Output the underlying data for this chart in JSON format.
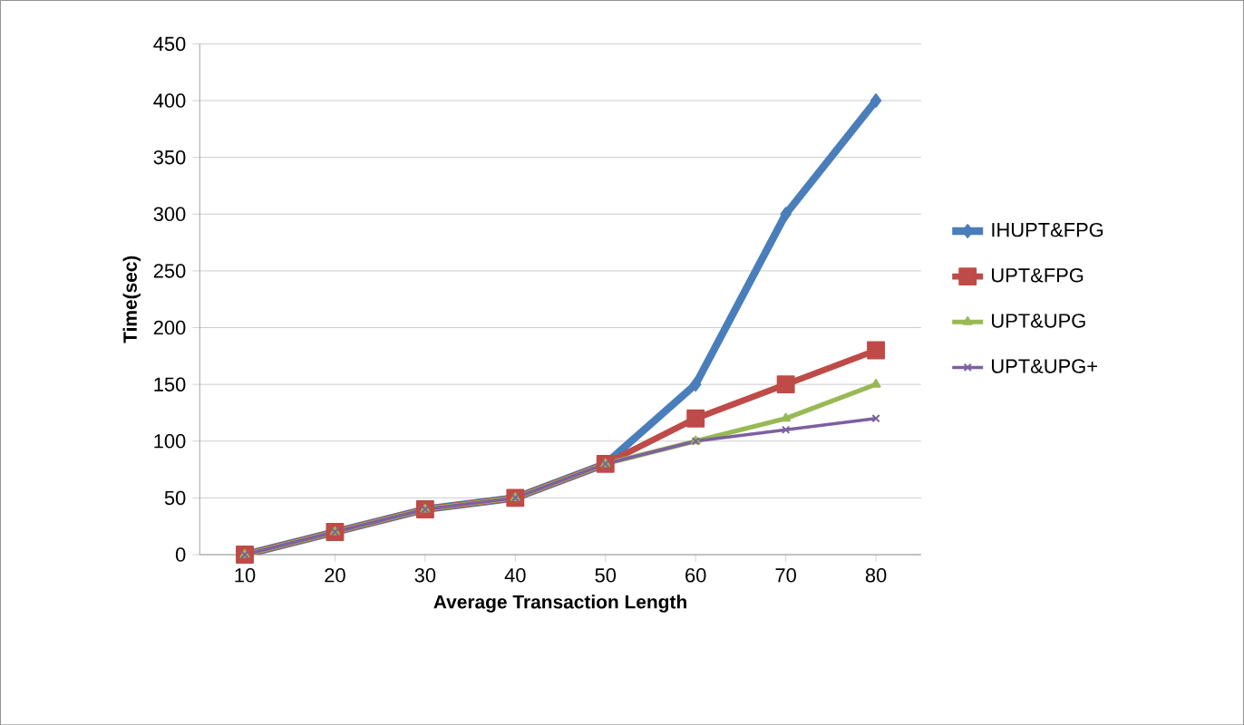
{
  "chart_data": {
    "type": "line",
    "xlabel": "Average Transaction Length",
    "ylabel": "Time(sec)",
    "categories": [
      "10",
      "20",
      "30",
      "40",
      "50",
      "60",
      "70",
      "80"
    ],
    "series": [
      {
        "name": "IHUPT&FPG",
        "color": "#4a7ebb",
        "marker": "diamond",
        "values": [
          0,
          20,
          40,
          50,
          80,
          150,
          300,
          400
        ]
      },
      {
        "name": "UPT&FPG",
        "color": "#be4b48",
        "marker": "square",
        "values": [
          0,
          20,
          40,
          50,
          80,
          120,
          150,
          180
        ]
      },
      {
        "name": "UPT&UPG",
        "color": "#98b954",
        "marker": "triangle",
        "values": [
          0,
          20,
          40,
          50,
          80,
          100,
          120,
          150
        ]
      },
      {
        "name": "UPT&UPG+",
        "color": "#7d60a0",
        "marker": "cross",
        "values": [
          0,
          20,
          40,
          50,
          80,
          100,
          110,
          120
        ]
      }
    ],
    "ylim": [
      0,
      450
    ],
    "yticks": [
      0,
      50,
      100,
      150,
      200,
      250,
      300,
      350,
      400,
      450
    ],
    "grid": "y",
    "legend": "right"
  }
}
